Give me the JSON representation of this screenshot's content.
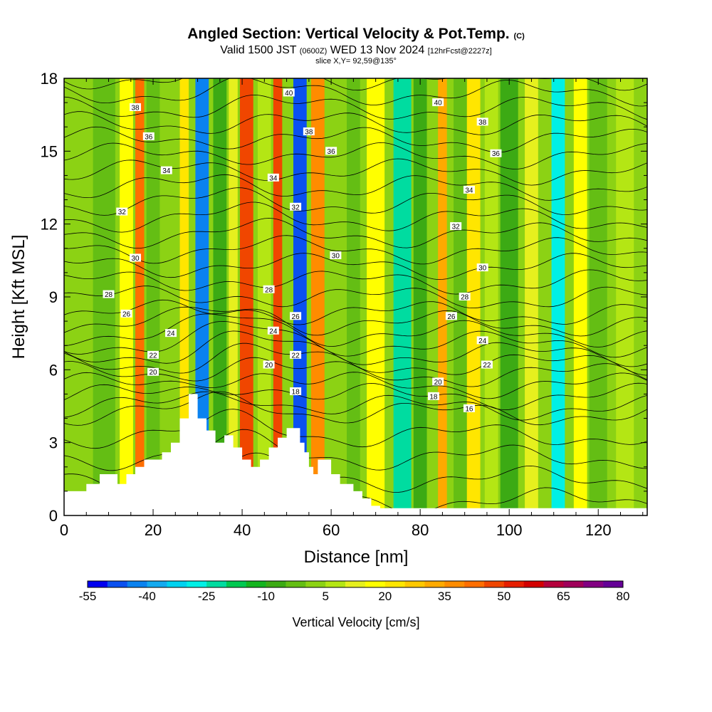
{
  "header": {
    "title": "Angled Section: Vertical Velocity & Pot.Temp.",
    "title_unit": "(C)",
    "valid_prefix": "Valid 1500 JST",
    "valid_utc": "(0600Z)",
    "valid_date": "WED 13 Nov 2024",
    "forecast": "[12hrFcst@2227z]",
    "slice": "slice X,Y= 92,59@135°"
  },
  "chart_data": {
    "type": "heatmap",
    "title": "Angled Section: Vertical Velocity & Pot.Temp.",
    "xlabel": "Distance [nm]",
    "ylabel": "Height [Kft MSL]",
    "xlim": [
      0,
      131
    ],
    "ylim": [
      0,
      18
    ],
    "x_ticks": [
      0,
      20,
      40,
      60,
      80,
      100,
      120
    ],
    "y_ticks": [
      0,
      3,
      6,
      9,
      12,
      15,
      18
    ],
    "colorbar": {
      "label": "Vertical Velocity [cm/s]",
      "min": -55,
      "max": 80,
      "step": 5,
      "tick_labels": [
        "-55",
        "-40",
        "-25",
        "-10",
        "5",
        "20",
        "35",
        "50",
        "65",
        "80"
      ],
      "colors": [
        "#0000f0",
        "#0a50f0",
        "#0a82f0",
        "#14aaf0",
        "#00d2f0",
        "#00f0e6",
        "#00dca0",
        "#00c850",
        "#14b41e",
        "#3caa14",
        "#64be14",
        "#8cd214",
        "#b4e614",
        "#e6f01e",
        "#ffff00",
        "#ffe600",
        "#ffc800",
        "#ffaa00",
        "#ff8c00",
        "#ff6e00",
        "#f04600",
        "#e61e00",
        "#d20000",
        "#b4003c",
        "#a0005a",
        "#820082",
        "#640096"
      ]
    },
    "vertical_velocity_columns": [
      {
        "x": 4,
        "w": 4,
        "value": 0
      },
      {
        "x": 9,
        "w": 5,
        "value": -5
      },
      {
        "x": 14,
        "w": 3,
        "value": 15
      },
      {
        "x": 17,
        "w": 2,
        "value": 40
      },
      {
        "x": 20,
        "w": 3,
        "value": -5
      },
      {
        "x": 24,
        "w": 3,
        "value": 0
      },
      {
        "x": 27,
        "w": 2,
        "value": 20
      },
      {
        "x": 31,
        "w": 3,
        "value": -45
      },
      {
        "x": 35,
        "w": 3,
        "value": -10
      },
      {
        "x": 38,
        "w": 2,
        "value": 10
      },
      {
        "x": 41,
        "w": 3,
        "value": 45
      },
      {
        "x": 45,
        "w": 3,
        "value": 5
      },
      {
        "x": 48,
        "w": 2,
        "value": 45
      },
      {
        "x": 53,
        "w": 3,
        "value": -50
      },
      {
        "x": 57,
        "w": 3,
        "value": 35
      },
      {
        "x": 61,
        "w": 3,
        "value": 0
      },
      {
        "x": 65,
        "w": 3,
        "value": -5
      },
      {
        "x": 70,
        "w": 4,
        "value": 15
      },
      {
        "x": 76,
        "w": 4,
        "value": -25
      },
      {
        "x": 80,
        "w": 3,
        "value": -10
      },
      {
        "x": 85,
        "w": 2,
        "value": 30
      },
      {
        "x": 89,
        "w": 3,
        "value": -5
      },
      {
        "x": 92,
        "w": 3,
        "value": 20
      },
      {
        "x": 96,
        "w": 3,
        "value": 5
      },
      {
        "x": 100,
        "w": 4,
        "value": -10
      },
      {
        "x": 105,
        "w": 3,
        "value": 10
      },
      {
        "x": 111,
        "w": 3,
        "value": -30
      },
      {
        "x": 116,
        "w": 3,
        "value": 15
      },
      {
        "x": 120,
        "w": 4,
        "value": -5
      },
      {
        "x": 126,
        "w": 4,
        "value": 5
      }
    ],
    "terrain": [
      [
        0,
        1
      ],
      [
        5,
        1
      ],
      [
        5,
        1.3
      ],
      [
        8,
        1.3
      ],
      [
        8,
        1.7
      ],
      [
        12,
        1.7
      ],
      [
        12,
        1.3
      ],
      [
        14,
        1.3
      ],
      [
        14,
        1.7
      ],
      [
        16,
        1.7
      ],
      [
        16,
        2
      ],
      [
        18,
        2
      ],
      [
        18,
        2.3
      ],
      [
        22,
        2.3
      ],
      [
        22,
        2.6
      ],
      [
        24,
        2.6
      ],
      [
        24,
        3
      ],
      [
        26,
        3
      ],
      [
        26,
        4
      ],
      [
        28,
        4
      ],
      [
        28,
        5
      ],
      [
        30,
        5
      ],
      [
        30,
        4
      ],
      [
        32,
        4
      ],
      [
        32,
        3.5
      ],
      [
        34,
        3.5
      ],
      [
        34,
        3
      ],
      [
        36,
        3
      ],
      [
        36,
        3.3
      ],
      [
        38,
        3.3
      ],
      [
        38,
        2.8
      ],
      [
        40,
        2.8
      ],
      [
        40,
        2.3
      ],
      [
        42,
        2.3
      ],
      [
        42,
        2
      ],
      [
        44,
        2
      ],
      [
        44,
        2.3
      ],
      [
        46,
        2.3
      ],
      [
        46,
        2.8
      ],
      [
        48,
        2.8
      ],
      [
        48,
        3.2
      ],
      [
        50,
        3.2
      ],
      [
        50,
        3.6
      ],
      [
        53,
        3.6
      ],
      [
        53,
        3
      ],
      [
        54,
        3
      ],
      [
        54,
        2.6
      ],
      [
        55,
        2.6
      ],
      [
        55,
        2
      ],
      [
        56,
        2
      ],
      [
        56,
        1.7
      ],
      [
        57,
        1.7
      ],
      [
        57,
        2.3
      ],
      [
        60,
        2.3
      ],
      [
        60,
        1.7
      ],
      [
        62,
        1.7
      ],
      [
        62,
        1.3
      ],
      [
        65,
        1.3
      ],
      [
        65,
        1
      ],
      [
        67,
        1
      ],
      [
        67,
        0.7
      ],
      [
        69,
        0.7
      ],
      [
        69,
        0.4
      ],
      [
        71,
        0.4
      ],
      [
        71,
        0.3
      ],
      [
        131,
        0.3
      ],
      [
        131,
        0
      ],
      [
        0,
        0
      ]
    ],
    "isentropes": [
      {
        "value": 18,
        "label": "18",
        "label_x": 83
      },
      {
        "value": 20,
        "label": "20",
        "label_x": 20
      },
      {
        "value": 22,
        "label": "22",
        "label_x": 20
      },
      {
        "value": 24,
        "label": "24",
        "label_x": 24
      },
      {
        "value": 26,
        "label": "26",
        "label_x": 14
      },
      {
        "value": 28,
        "label": "28",
        "label_x": 10
      },
      {
        "value": 30,
        "label": "30",
        "label_x": 16
      },
      {
        "value": 32,
        "label": "32",
        "label_x": 13
      },
      {
        "value": 34,
        "label": "34",
        "label_x": 23
      },
      {
        "value": 36,
        "label": "36",
        "label_x": 19
      },
      {
        "value": 38,
        "label": "38",
        "label_x": 16
      },
      {
        "value": 40,
        "label": "40",
        "label_x": 51
      }
    ],
    "isentrope_labels": [
      {
        "label": "40",
        "x": 50.5,
        "y": 17.4
      },
      {
        "label": "40",
        "x": 84,
        "y": 17.0
      },
      {
        "label": "38",
        "x": 16,
        "y": 16.8
      },
      {
        "label": "38",
        "x": 55,
        "y": 15.8
      },
      {
        "label": "38",
        "x": 94,
        "y": 16.2
      },
      {
        "label": "36",
        "x": 19,
        "y": 15.6
      },
      {
        "label": "36",
        "x": 60,
        "y": 15.0
      },
      {
        "label": "36",
        "x": 97,
        "y": 14.9
      },
      {
        "label": "34",
        "x": 23,
        "y": 14.2
      },
      {
        "label": "34",
        "x": 47,
        "y": 13.9
      },
      {
        "label": "34",
        "x": 91,
        "y": 13.4
      },
      {
        "label": "32",
        "x": 13,
        "y": 12.5
      },
      {
        "label": "32",
        "x": 52,
        "y": 12.7
      },
      {
        "label": "32",
        "x": 88,
        "y": 11.9
      },
      {
        "label": "30",
        "x": 16,
        "y": 10.6
      },
      {
        "label": "30",
        "x": 61,
        "y": 10.7
      },
      {
        "label": "30",
        "x": 94,
        "y": 10.2
      },
      {
        "label": "28",
        "x": 10,
        "y": 9.1
      },
      {
        "label": "28",
        "x": 46,
        "y": 9.3
      },
      {
        "label": "28",
        "x": 90,
        "y": 9.0
      },
      {
        "label": "26",
        "x": 14,
        "y": 8.3
      },
      {
        "label": "26",
        "x": 52,
        "y": 8.2
      },
      {
        "label": "26",
        "x": 87,
        "y": 8.2
      },
      {
        "label": "24",
        "x": 24,
        "y": 7.5
      },
      {
        "label": "24",
        "x": 47,
        "y": 7.6
      },
      {
        "label": "24",
        "x": 94,
        "y": 7.2
      },
      {
        "label": "22",
        "x": 20,
        "y": 6.6
      },
      {
        "label": "22",
        "x": 52,
        "y": 6.6
      },
      {
        "label": "22",
        "x": 95,
        "y": 6.2
      },
      {
        "label": "20",
        "x": 20,
        "y": 5.9
      },
      {
        "label": "20",
        "x": 46,
        "y": 6.2
      },
      {
        "label": "20",
        "x": 84,
        "y": 5.5
      },
      {
        "label": "18",
        "x": 52,
        "y": 5.1
      },
      {
        "label": "18",
        "x": 83,
        "y": 4.9
      },
      {
        "label": "16",
        "x": 91,
        "y": 4.4
      }
    ]
  }
}
